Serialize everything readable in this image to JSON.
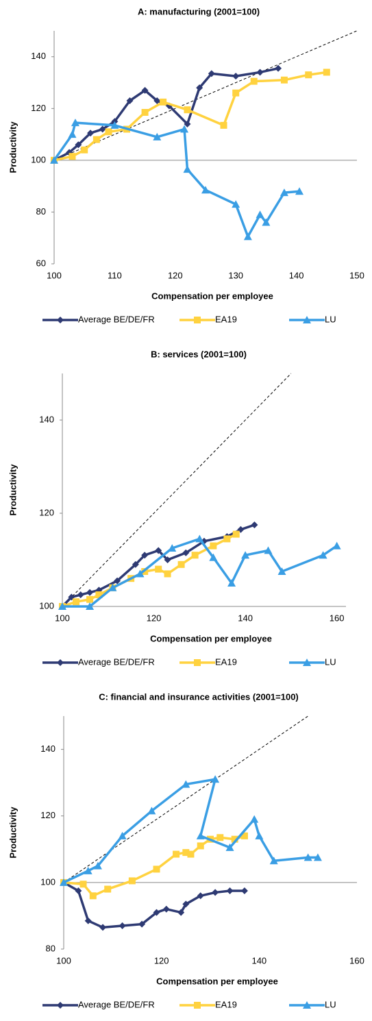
{
  "chart_data": [
    {
      "type": "line",
      "title": "A: manufacturing  (2001=100)",
      "x_label": "Compensation per employee",
      "y_label": "Productivity",
      "xlim": [
        100,
        150
      ],
      "xticks": [
        100,
        110,
        120,
        130,
        140,
        150
      ],
      "ylim": [
        60,
        150
      ],
      "yticks": [
        60,
        80,
        100,
        120,
        140
      ],
      "x_axis_at": 100,
      "diagonal": true,
      "series": [
        {
          "name": "Average BE/DE/FR",
          "color": "#2e3a73",
          "marker": "diamond",
          "x": [
            100,
            102.5,
            104,
            106,
            108,
            110,
            112.5,
            115,
            117,
            119,
            122,
            124,
            126,
            130,
            134,
            137
          ],
          "values": [
            100,
            103,
            106,
            110.5,
            112,
            115,
            123,
            127,
            123,
            121,
            114,
            128,
            133.5,
            132.5,
            134,
            135.5
          ]
        },
        {
          "name": "EA19",
          "color": "#ffd23f",
          "marker": "square",
          "x": [
            100,
            103,
            105,
            107,
            109,
            112,
            115,
            118,
            122,
            128,
            130,
            133,
            138,
            142,
            145
          ],
          "values": [
            100,
            101.5,
            104,
            108,
            111,
            112,
            118.5,
            122.5,
            119.5,
            113.5,
            126,
            130.5,
            131,
            133,
            134
          ]
        },
        {
          "name": "LU",
          "color": "#3a9ee4",
          "marker": "triangle",
          "x": [
            100,
            103,
            103.5,
            110,
            117,
            121.5,
            122,
            125,
            130,
            132,
            134,
            135,
            138,
            140.5
          ],
          "values": [
            100,
            110,
            114.5,
            113.5,
            109,
            112,
            96.5,
            88.5,
            83,
            70.5,
            79,
            76,
            87.5,
            88
          ]
        }
      ]
    },
    {
      "type": "line",
      "title": "B: services  (2001=100)",
      "x_label": "Compensation per employee",
      "y_label": "Productivity",
      "xlim": [
        100,
        162
      ],
      "xticks": [
        100,
        120,
        140,
        160
      ],
      "ylim": [
        100,
        150
      ],
      "yticks": [
        100,
        120,
        140
      ],
      "x_axis_at": 100,
      "diagonal": true,
      "series": [
        {
          "name": "Average BE/DE/FR",
          "color": "#2e3a73",
          "marker": "diamond",
          "x": [
            100,
            102,
            104,
            106,
            108,
            112,
            116,
            118,
            121,
            123,
            127,
            131,
            136,
            139,
            142
          ],
          "values": [
            100,
            102,
            102.5,
            103,
            103.5,
            105.5,
            109,
            111,
            112,
            110,
            111.5,
            114,
            115,
            116.5,
            117.5
          ]
        },
        {
          "name": "EA19",
          "color": "#ffd23f",
          "marker": "square",
          "x": [
            100,
            103,
            106,
            108,
            111,
            115,
            118,
            121,
            123,
            126,
            129,
            133,
            136,
            138
          ],
          "values": [
            100,
            101,
            101.5,
            102.5,
            104,
            106,
            107.5,
            108,
            107,
            109,
            111,
            113,
            114.5,
            115.5
          ]
        },
        {
          "name": "LU",
          "color": "#3a9ee4",
          "marker": "triangle",
          "x": [
            100,
            106,
            111,
            117,
            124,
            130,
            133,
            137,
            140,
            145,
            148,
            157,
            160
          ],
          "values": [
            100,
            100,
            104,
            107,
            112.5,
            114.5,
            110.5,
            105,
            111,
            112,
            107.5,
            111,
            113
          ]
        }
      ]
    },
    {
      "type": "line",
      "title": "C: financial and insurance activities (2001=100)",
      "x_label": "Compensation per employee",
      "y_label": "Productivity",
      "xlim": [
        100,
        160
      ],
      "xticks": [
        100,
        120,
        140,
        160
      ],
      "ylim": [
        80,
        150
      ],
      "yticks": [
        80,
        100,
        120,
        140
      ],
      "x_axis_at": 100,
      "diagonal": true,
      "series": [
        {
          "name": "Average BE/DE/FR",
          "color": "#2e3a73",
          "marker": "diamond",
          "x": [
            100,
            103,
            105,
            108,
            112,
            116,
            119,
            121,
            124,
            125,
            128,
            131,
            134,
            137
          ],
          "values": [
            100,
            97.5,
            88.5,
            86.5,
            87,
            87.5,
            91,
            92,
            91,
            93.5,
            96,
            97,
            97.5,
            97.5
          ]
        },
        {
          "name": "EA19",
          "color": "#ffd23f",
          "marker": "square",
          "x": [
            100,
            104,
            106,
            109,
            114,
            119,
            123,
            125,
            126,
            128,
            130,
            132,
            135,
            137
          ],
          "values": [
            100,
            99.5,
            96,
            98,
            100.5,
            104,
            108.5,
            109,
            108.5,
            111,
            113,
            113.5,
            113,
            114
          ]
        },
        {
          "name": "LU",
          "color": "#3a9ee4",
          "marker": "triangle",
          "x": [
            100,
            105,
            107,
            112,
            118,
            125,
            131,
            128,
            134,
            139,
            140,
            143,
            150,
            152
          ],
          "values": [
            100,
            103.5,
            105,
            114,
            121.5,
            129.5,
            131,
            114,
            110.5,
            119,
            114,
            106.5,
            107.5,
            107.5
          ]
        }
      ]
    }
  ]
}
